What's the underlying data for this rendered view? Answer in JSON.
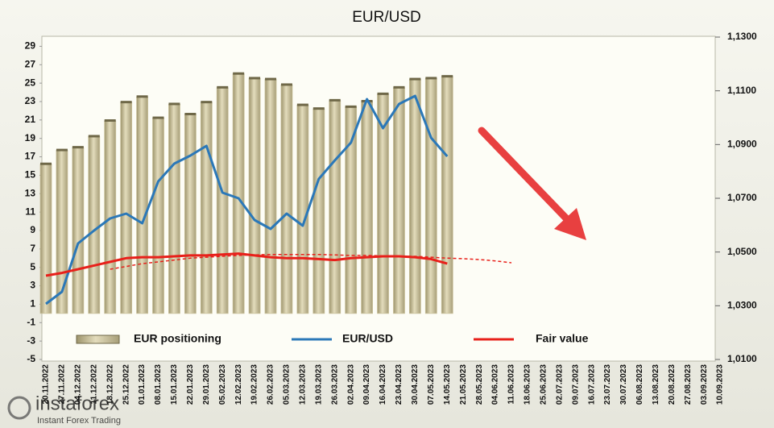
{
  "chart_data": {
    "type": "bar",
    "title": "EUR/USD",
    "categories": [
      "20.11.2022",
      "27.11.2022",
      "04.12.2022",
      "11.12.2022",
      "18.12.2022",
      "25.12.2022",
      "01.01.2023",
      "08.01.2023",
      "15.01.2023",
      "22.01.2023",
      "29.01.2023",
      "05.02.2023",
      "12.02.2023",
      "19.02.2023",
      "26.02.2023",
      "05.03.2023",
      "12.03.2023",
      "19.03.2023",
      "26.03.2023",
      "02.04.2023",
      "09.04.2023",
      "16.04.2023",
      "23.04.2023",
      "30.04.2023",
      "07.05.2023",
      "14.05.2023",
      "21.05.2023",
      "28.05.2023",
      "04.06.2023",
      "11.06.2023",
      "18.06.2023",
      "25.06.2023",
      "02.07.2023",
      "09.07.2023",
      "16.07.2023",
      "23.07.2023",
      "30.07.2023",
      "06.08.2023",
      "13.08.2023",
      "20.08.2023",
      "27.08.2023",
      "03.09.2023",
      "10.09.2023"
    ],
    "series": [
      {
        "name": "EUR positioning",
        "type": "bar",
        "color": "#c9c09a",
        "values": [
          16.2,
          17.7,
          18.0,
          19.2,
          20.9,
          22.9,
          23.5,
          21.2,
          22.7,
          21.6,
          22.9,
          24.5,
          26.0,
          25.5,
          25.4,
          24.8,
          22.6,
          22.2,
          23.1,
          22.4,
          23.0,
          23.8,
          24.5,
          25.4,
          25.5,
          25.7,
          null,
          null,
          null,
          null,
          null,
          null,
          null,
          null,
          null,
          null,
          null,
          null,
          null,
          null,
          null,
          null,
          null
        ]
      },
      {
        "name": "EUR/USD",
        "type": "line",
        "axis": "y2",
        "color": "#2b78b8",
        "values": [
          1.0307,
          1.0352,
          1.0532,
          1.058,
          1.0625,
          1.0643,
          1.0607,
          1.0763,
          1.0829,
          1.0859,
          1.0895,
          1.0721,
          1.07,
          1.0619,
          1.0586,
          1.0643,
          1.0598,
          1.0772,
          1.0841,
          1.0907,
          1.1069,
          1.0961,
          1.1051,
          1.1081,
          1.0925,
          1.0856,
          null,
          null,
          null,
          null,
          null,
          null,
          null,
          null,
          null,
          null,
          null,
          null,
          null,
          null,
          null,
          null,
          null
        ]
      },
      {
        "name": "Fair value",
        "type": "line",
        "color": "#e8201a",
        "values": [
          4.1,
          4.4,
          4.8,
          5.2,
          5.6,
          6.0,
          6.1,
          6.1,
          6.2,
          6.3,
          6.3,
          6.4,
          6.5,
          6.3,
          6.1,
          6.0,
          6.0,
          5.9,
          5.8,
          6.0,
          6.1,
          6.2,
          6.2,
          6.1,
          5.9,
          5.4,
          null,
          null,
          null,
          null,
          null,
          null,
          null,
          null,
          null,
          null,
          null,
          null,
          null,
          null,
          null,
          null,
          null
        ]
      }
    ],
    "trend": {
      "color": "#e8201a",
      "dashed": true,
      "values": [
        null,
        null,
        null,
        null,
        4.8,
        5.1,
        5.4,
        5.6,
        5.8,
        6.0,
        6.1,
        6.2,
        6.3,
        6.35,
        6.4,
        6.4,
        6.4,
        6.4,
        6.35,
        6.3,
        6.3,
        6.25,
        6.2,
        6.2,
        6.1,
        6.0,
        5.95,
        5.85,
        5.7,
        5.5,
        null,
        null,
        null,
        null,
        null,
        null,
        null,
        null,
        null,
        null,
        null,
        null,
        null
      ]
    },
    "ylim": [
      -5,
      30
    ],
    "yticks": [
      -5,
      -3,
      -1,
      1,
      3,
      5,
      7,
      9,
      11,
      13,
      15,
      17,
      19,
      21,
      23,
      25,
      27,
      29
    ],
    "y2lim": [
      1.01,
      1.13
    ],
    "y2ticks": [
      {
        "value": 1.01,
        "label": "1,0100"
      },
      {
        "value": 1.03,
        "label": "1,0300"
      },
      {
        "value": 1.05,
        "label": "1,0500"
      },
      {
        "value": 1.07,
        "label": "1,0700"
      },
      {
        "value": 1.09,
        "label": "1,0900"
      },
      {
        "value": 1.11,
        "label": "1,1100"
      },
      {
        "value": 1.13,
        "label": "1,1300"
      }
    ],
    "legend": "bottom"
  },
  "logo": {
    "name": "instaforex",
    "tagline": "Instant Forex Trading"
  }
}
